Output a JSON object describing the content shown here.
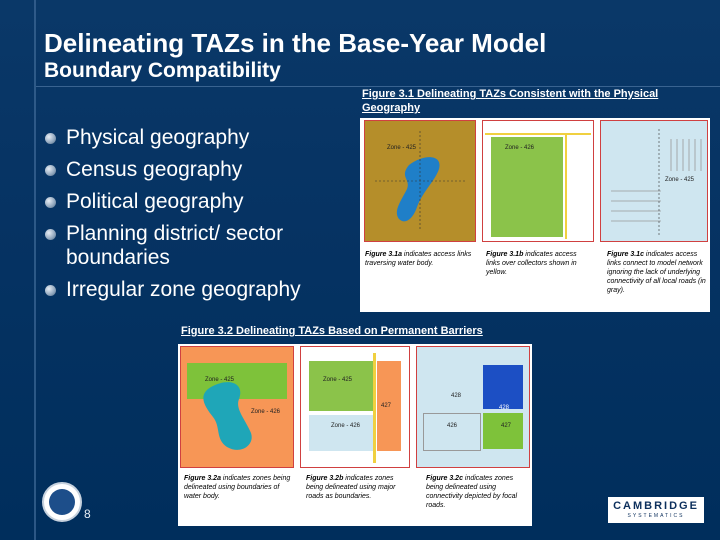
{
  "slide": {
    "title": "Delineating TAZs in the Base-Year Model",
    "subtitle": "Boundary Compatibility",
    "bullets": [
      "Physical geography",
      "Census geography",
      "Political geography",
      "Planning district/ sector boundaries",
      "Irregular zone geography"
    ],
    "page_number": "8"
  },
  "figure31": {
    "caption": "Figure 3.1 Delineating TAZs Consistent with the Physical Geography",
    "zones": [
      "Zone - 425",
      "Zone - 426",
      "Zone - 425"
    ],
    "captions": [
      [
        "Figure 3.1a",
        " indicates access links traversing water body."
      ],
      [
        "Figure 3.1b",
        " indicates access links over collectors shown in yellow."
      ],
      [
        "Figure 3.1c",
        " indicates access links connect to model network ignoring the lack of underlying connectivity of all local roads (in gray)."
      ]
    ]
  },
  "figure32": {
    "caption": "Figure 3.2 Delineating TAZs Based on Permanent Barriers",
    "zones_a": [
      "Zone - 425",
      "Zone - 426"
    ],
    "zones_b": [
      "Zone - 425",
      "427",
      "Zone - 426"
    ],
    "zones_c": [
      "428",
      "428",
      "426",
      "427"
    ],
    "captions": [
      [
        "Figure 3.2a",
        " indicates zones being delineated using boundaries of water body."
      ],
      [
        "Figure 3.2b",
        " indicates zones being delineated using major roads as boundaries."
      ],
      [
        "Figure 3.2c",
        " indicates zones being delineated using connectivity depicted by focal roads."
      ]
    ]
  },
  "logo": {
    "main": "CAMBRIDGE",
    "sub": "SYSTEMATICS"
  },
  "colors": {
    "background": "#002f5f",
    "water": "#1f7fc8",
    "land_brown": "#b58e2a",
    "land_green": "#7ec23a",
    "light_blue": "#cfe6f0",
    "orange": "#f79656",
    "focal_blue": "#1c4fc4"
  }
}
